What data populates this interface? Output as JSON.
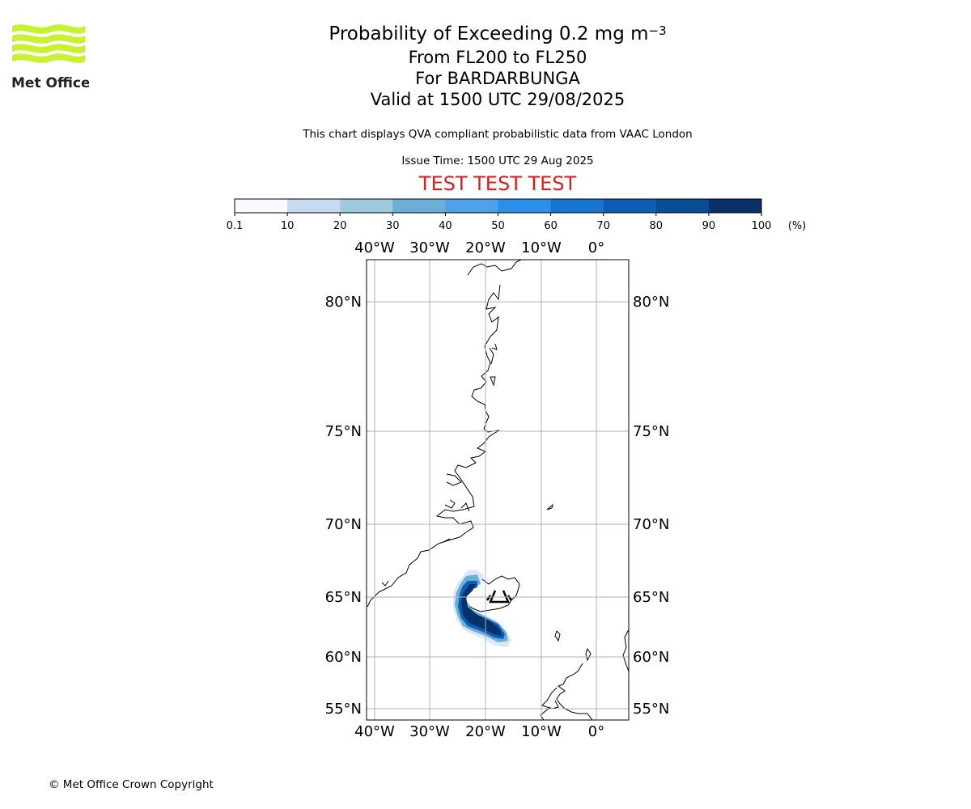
{
  "header": {
    "title_prefix": "Probability of Exceeding 0.2 mg m",
    "title_exponent": "−3",
    "levels": "From FL200 to FL250",
    "volcano": "For BARDARBUNGA",
    "valid": "Valid at 1500 UTC 29/08/2025",
    "subtitle": "This chart displays QVA compliant probabilistic data from VAAC London",
    "issue_time": "Issue Time: 1500 UTC 29 Aug 2025",
    "test_banner": "TEST TEST TEST"
  },
  "logo": {
    "text": "Met Office",
    "color": "#c8f230"
  },
  "colorbar": {
    "ticks": [
      "0.1",
      "10",
      "20",
      "30",
      "40",
      "50",
      "60",
      "70",
      "80",
      "90",
      "100"
    ],
    "unit": "(%)",
    "colors": [
      "#f7fbff",
      "#c6dbef",
      "#9ecae1",
      "#6baed6",
      "#4ba2ea",
      "#2a8fe6",
      "#1774d0",
      "#0b5eb5",
      "#084e96",
      "#08306b"
    ]
  },
  "map": {
    "lon_labels": [
      "40°W",
      "30°W",
      "20°W",
      "10°W",
      "0°"
    ],
    "lat_labels": [
      "80°N",
      "75°N",
      "70°N",
      "65°N",
      "60°N",
      "55°N"
    ],
    "volcano_name": "BARDARBUNGA"
  },
  "footer": {
    "copyright": "© Met Office Crown Copyright"
  }
}
